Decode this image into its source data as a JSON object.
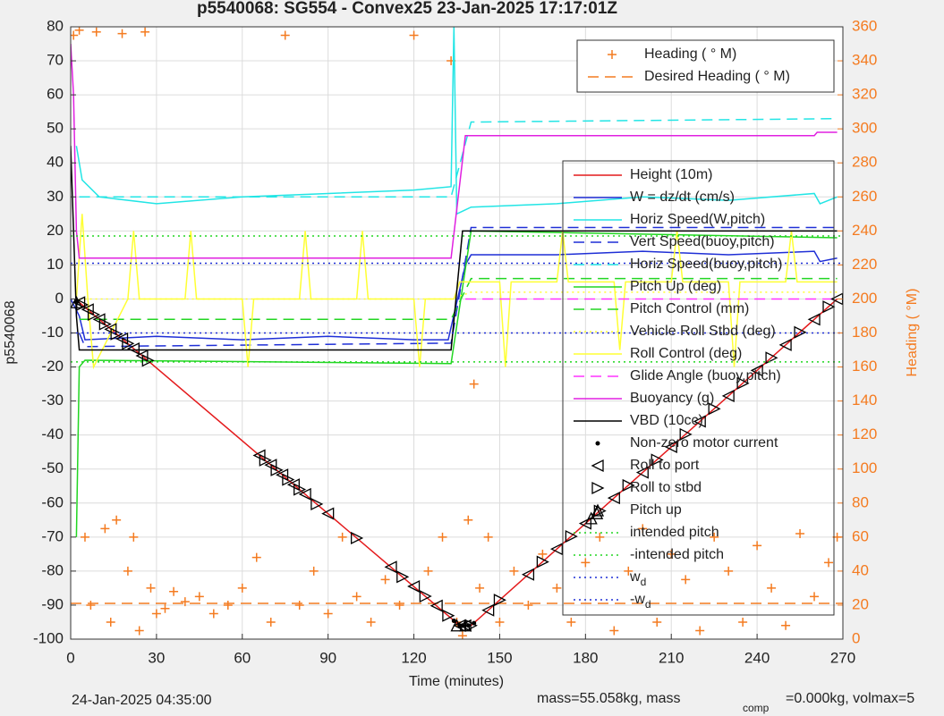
{
  "chart_data": {
    "type": "line",
    "title": "p5540068: SG554 - Convex25 23-Jan-2025 17:17:01Z",
    "x_label": "Time (minutes)",
    "y_label": "p5540068",
    "y2_label": "Heading (  °M)",
    "footer_date": "24-Jan-2025 04:35:00",
    "footer_mass": "mass=55.058kg, mass",
    "footer_sub": "comp",
    "footer_rest": "=0.000kg, volmax=5",
    "xlim": [
      0,
      270
    ],
    "xticks": [
      0,
      30,
      60,
      90,
      120,
      150,
      180,
      210,
      240,
      270
    ],
    "ylim": [
      -100,
      80
    ],
    "yticks": [
      -100,
      -90,
      -80,
      -70,
      -60,
      -50,
      -40,
      -30,
      -20,
      -10,
      0,
      10,
      20,
      30,
      40,
      50,
      60,
      70,
      80
    ],
    "y2lim": [
      0,
      360
    ],
    "y2ticks": [
      0,
      20,
      40,
      60,
      80,
      100,
      120,
      140,
      160,
      180,
      200,
      220,
      240,
      260,
      280,
      300,
      320,
      340,
      360
    ],
    "grid": true,
    "y2_color": "#f47b20",
    "series": [
      {
        "name": "Heading (   ° M)",
        "color": "#f47b20",
        "style": "none",
        "marker": "+",
        "axis": "y2",
        "x": [
          1,
          3,
          5,
          7,
          9,
          12,
          14,
          16,
          18,
          20,
          22,
          24,
          26,
          28,
          30,
          33,
          36,
          40,
          45,
          50,
          55,
          60,
          65,
          70,
          75,
          80,
          85,
          90,
          95,
          100,
          105,
          110,
          115,
          120,
          125,
          130,
          133,
          135,
          137,
          139,
          141,
          143,
          146,
          150,
          155,
          160,
          165,
          170,
          175,
          180,
          185,
          190,
          195,
          200,
          205,
          210,
          215,
          220,
          225,
          230,
          235,
          240,
          245,
          250,
          255,
          260,
          265,
          268
        ],
        "values": [
          355,
          358,
          60,
          20,
          357,
          65,
          10,
          70,
          356,
          40,
          60,
          5,
          357,
          30,
          15,
          18,
          28,
          22,
          25,
          15,
          20,
          30,
          48,
          10,
          355,
          20,
          40,
          15,
          60,
          25,
          10,
          35,
          20,
          355,
          40,
          60,
          340,
          10,
          2,
          70,
          150,
          30,
          60,
          10,
          40,
          20,
          50,
          30,
          10,
          45,
          60,
          5,
          40,
          65,
          10,
          50,
          35,
          5,
          60,
          40,
          10,
          55,
          30,
          8,
          62,
          25,
          45,
          60
        ]
      },
      {
        "name": "Desired Heading (    ° M)",
        "color": "#f47b20",
        "style": "dashed",
        "axis": "y2",
        "x": [
          0,
          270
        ],
        "values": [
          21,
          21
        ]
      },
      {
        "name": "Height (10m)",
        "color": "#e41a1c",
        "style": "solid",
        "x": [
          2,
          3,
          136,
          140,
          268
        ],
        "values": [
          -1,
          -1,
          -96,
          -96,
          0
        ]
      },
      {
        "name": "W = dz/dt (cm/s)",
        "color": "#1f2fd6",
        "style": "solid",
        "x": [
          0,
          3,
          5,
          30,
          60,
          90,
          120,
          132,
          138,
          140,
          170,
          200,
          230,
          260,
          262,
          268
        ],
        "values": [
          0,
          -5,
          -12,
          -11,
          -12,
          -11,
          -12,
          -12,
          10,
          13,
          13,
          14,
          13,
          14,
          11,
          12
        ]
      },
      {
        "name": "Horiz Speed(W,pitch)",
        "color": "#22e5e5",
        "style": "solid",
        "x": [
          2,
          4,
          10,
          30,
          60,
          90,
          120,
          133,
          134,
          135,
          140,
          170,
          200,
          230,
          260,
          262,
          268
        ],
        "values": [
          45,
          35,
          30,
          28,
          30,
          31,
          32,
          33,
          80,
          25,
          27,
          28,
          30,
          29,
          31,
          28,
          30
        ]
      },
      {
        "name": "Vert Speed(buoy,pitch)",
        "color": "#1f2fd6",
        "style": "dashed",
        "x": [
          3,
          5,
          133,
          140,
          268
        ],
        "values": [
          -10,
          -14,
          -13,
          21,
          21
        ]
      },
      {
        "name": "Horiz Speed(buoy,pitch)",
        "color": "#22e5e5",
        "style": "dashed",
        "x": [
          3,
          133,
          140,
          268
        ],
        "values": [
          30,
          30,
          52,
          53
        ]
      },
      {
        "name": "Pitch Up (deg)",
        "color": "#22d622",
        "style": "solid",
        "x": [
          2,
          3,
          5,
          133,
          140,
          268
        ],
        "values": [
          -70,
          -20,
          -18,
          -19,
          20,
          18
        ]
      },
      {
        "name": "Pitch Control (mm)",
        "color": "#22d622",
        "style": "dashed",
        "x": [
          3,
          133,
          140,
          268
        ],
        "values": [
          -6,
          -6,
          6,
          6
        ]
      },
      {
        "name": "Vehicle Roll Stbd (deg)",
        "color": "#ffff33",
        "style": "dotted",
        "x": [
          3,
          133,
          140,
          268
        ],
        "values": [
          0,
          0,
          2,
          2
        ]
      },
      {
        "name": "Roll Control (deg)",
        "color": "#ffff33",
        "style": "solid",
        "x": [
          2,
          4,
          6,
          8,
          20,
          22,
          24,
          40,
          42,
          44,
          60,
          62,
          64,
          80,
          82,
          84,
          100,
          102,
          104,
          120,
          122,
          124,
          134,
          136,
          150,
          152,
          154,
          170,
          172,
          174,
          190,
          192,
          194,
          210,
          212,
          214,
          230,
          232,
          234,
          250,
          252,
          254,
          268
        ],
        "values": [
          0,
          25,
          0,
          -20,
          0,
          20,
          0,
          0,
          20,
          0,
          0,
          -20,
          0,
          0,
          20,
          0,
          0,
          20,
          0,
          0,
          -20,
          0,
          0,
          5,
          5,
          -20,
          5,
          5,
          20,
          5,
          5,
          -15,
          5,
          5,
          20,
          5,
          5,
          -20,
          5,
          5,
          20,
          5,
          5
        ]
      },
      {
        "name": "Glide Angle (buoy,pitch)",
        "color": "#ff33ff",
        "style": "dashed",
        "x": [
          138,
          268
        ],
        "values": [
          0,
          0
        ]
      },
      {
        "name": "Buoyancy (g)",
        "color": "#e020e0",
        "style": "solid",
        "x": [
          0,
          1,
          2,
          3,
          133,
          138,
          260,
          261,
          268
        ],
        "values": [
          75,
          60,
          20,
          12,
          12,
          48,
          48,
          49,
          49
        ]
      },
      {
        "name": "VBD (10cc)",
        "color": "#000000",
        "style": "solid",
        "x": [
          0,
          1,
          2,
          3,
          133,
          137,
          268
        ],
        "values": [
          45,
          20,
          -5,
          -15,
          -15,
          20,
          20
        ]
      },
      {
        "name": "Non-zero motor current",
        "color": "#000000",
        "style": "none",
        "marker": ".",
        "x": [
          2,
          134,
          136,
          137,
          139,
          141
        ],
        "values": [
          -1,
          -94.6,
          -96,
          -96,
          -96,
          -95.3
        ]
      },
      {
        "name": "Roll to port",
        "color": "#000000",
        "style": "none",
        "marker": "<",
        "x": [
          3,
          6,
          10,
          14,
          18,
          22,
          25,
          66,
          70,
          74,
          78,
          82,
          90,
          112,
          120,
          128,
          136,
          138,
          146,
          160,
          170,
          180,
          190,
          200,
          210,
          220,
          230,
          240,
          250,
          260,
          268
        ],
        "values": [
          -1,
          -3.1,
          -6,
          -8.9,
          -11.7,
          -14.6,
          -16.7,
          -46,
          -48.8,
          -51.7,
          -54.6,
          -57.4,
          -63.1,
          -78.8,
          -84.5,
          -90.2,
          -96,
          -96,
          -91.5,
          -81,
          -73.5,
          -66,
          -58.5,
          -51,
          -43.5,
          -36,
          -28.5,
          -21,
          -13.5,
          -6,
          0
        ]
      },
      {
        "name": "Roll to stbd",
        "color": "#000000",
        "style": "none",
        "marker": ">",
        "x": [
          4,
          8,
          12,
          16,
          20,
          27,
          68,
          72,
          76,
          80,
          86,
          100,
          116,
          124,
          132,
          140,
          150,
          165,
          175,
          185,
          195,
          205,
          215,
          225,
          235,
          245,
          255,
          265
        ],
        "values": [
          -1.7,
          -4.6,
          -7.4,
          -10.3,
          -13.1,
          -18.1,
          -47.4,
          -50.3,
          -53.1,
          -56,
          -60.3,
          -70.3,
          -81.7,
          -87.4,
          -93.1,
          -96,
          -88.5,
          -77.3,
          -69.8,
          -62.3,
          -54.8,
          -47.3,
          -39.8,
          -32.3,
          -24.8,
          -17.3,
          -9.8,
          -2.3
        ]
      },
      {
        "name": "Pitch up",
        "color": "#000000",
        "style": "none",
        "marker": "^",
        "x": [
          2,
          135,
          138,
          182,
          184
        ],
        "values": [
          -1,
          -96,
          -96,
          -64.5,
          -63
        ]
      },
      {
        "name": "intended pitch",
        "color": "#22d622",
        "style": "dotted",
        "x": [
          0,
          270
        ],
        "values": [
          18.5,
          18.5
        ]
      },
      {
        "name": "-intended pitch",
        "color": "#22d622",
        "style": "dotted",
        "x": [
          0,
          270
        ],
        "values": [
          -18.5,
          -18.5
        ]
      },
      {
        "name": "w",
        "name_sub": "d",
        "color": "#1f2fd6",
        "style": "dotted",
        "x": [
          0,
          270
        ],
        "values": [
          10.5,
          10.5
        ]
      },
      {
        "name": "-w",
        "name_sub": "d",
        "color": "#1f2fd6",
        "style": "dotted",
        "x": [
          0,
          270
        ],
        "values": [
          -10,
          -10
        ]
      }
    ]
  }
}
